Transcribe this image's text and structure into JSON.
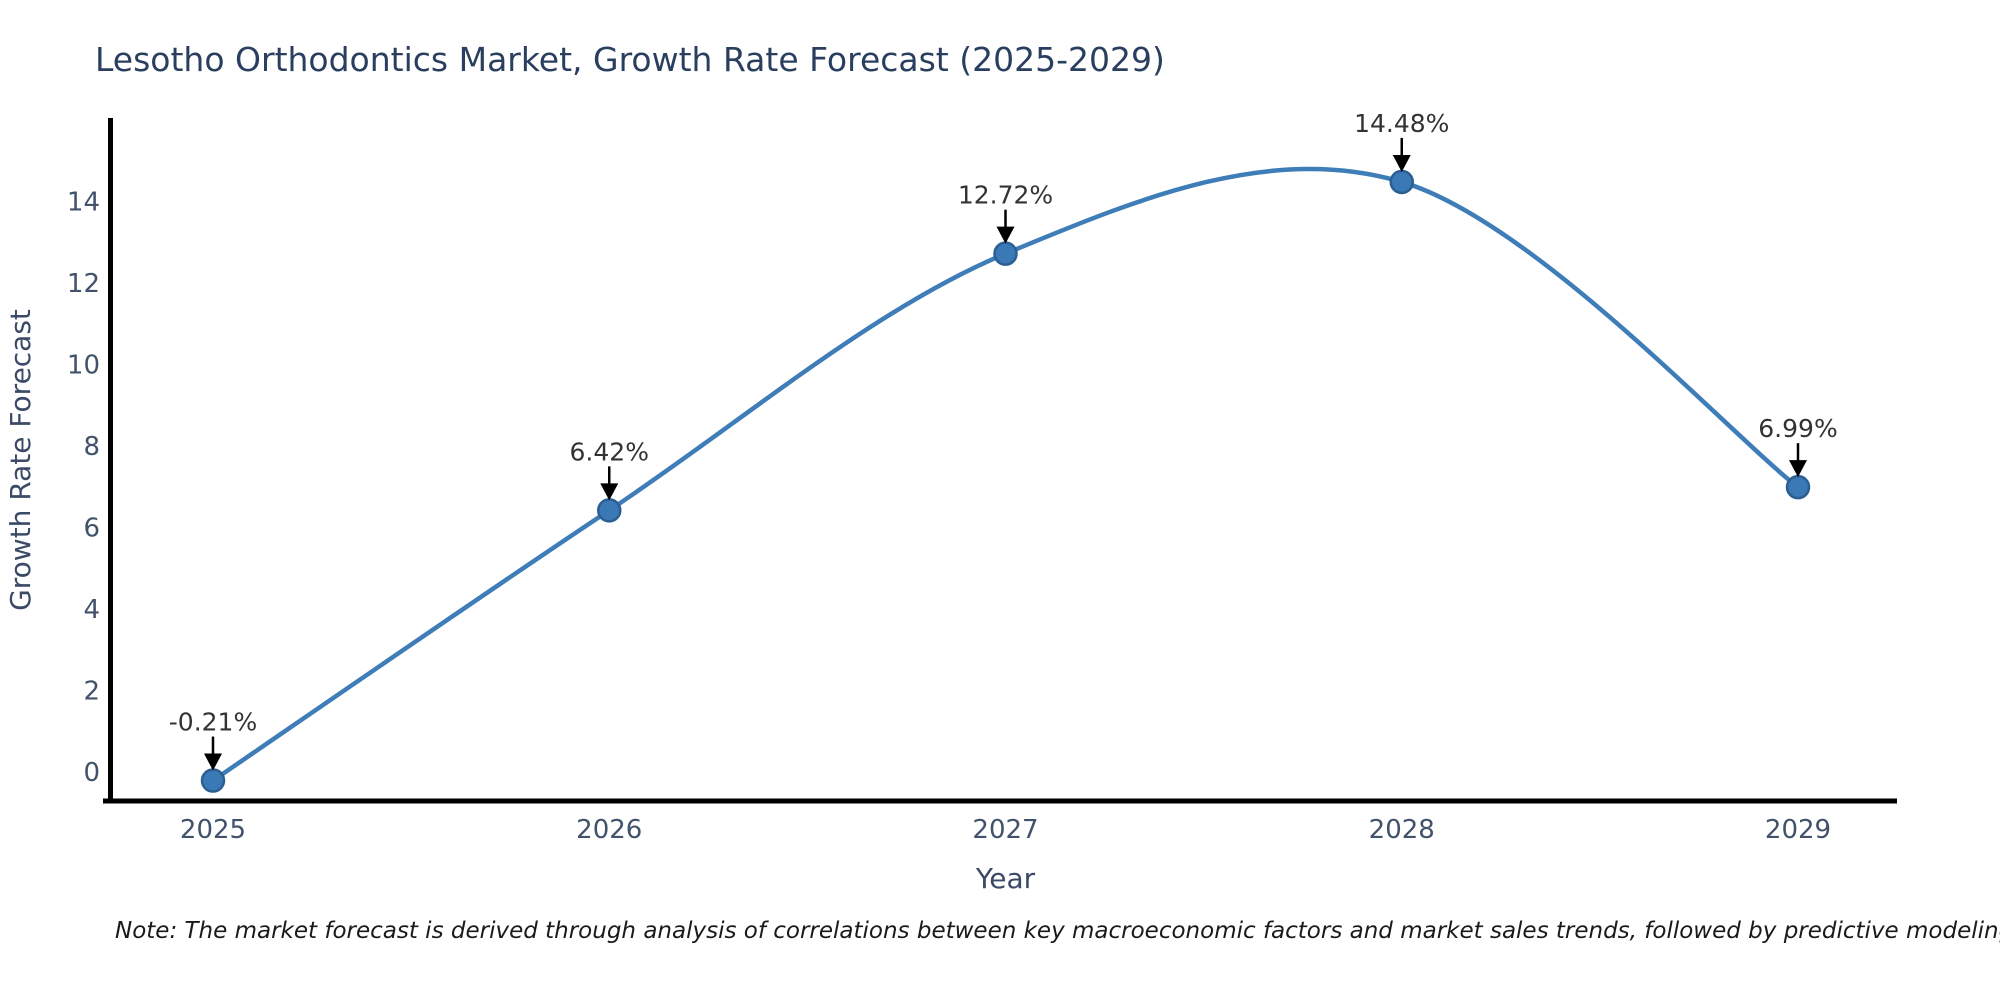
{
  "title": "Lesotho Orthodontics Market, Growth Rate Forecast (2025-2029)",
  "note": "Note: The market forecast is derived through analysis of correlations between key macroeconomic factors and market sales trends, followed by predictive modeling to project future sales",
  "chart_data": {
    "type": "line",
    "title": "Lesotho Orthodontics Market, Growth Rate Forecast (2025-2029)",
    "xlabel": "Year",
    "ylabel": "Growth Rate Forecast",
    "categories": [
      "2025",
      "2026",
      "2027",
      "2028",
      "2029"
    ],
    "values": [
      -0.21,
      6.42,
      12.72,
      14.48,
      6.99
    ],
    "point_labels": [
      "-0.21%",
      "6.42%",
      "12.72%",
      "14.48%",
      "6.99%"
    ],
    "yticks": [
      0,
      2,
      4,
      6,
      8,
      10,
      12,
      14
    ],
    "ylim": [
      -0.75,
      15.6
    ],
    "grid": false,
    "legend": "none",
    "line_shape": "spline",
    "annotation_style": "arrow-down-to-point",
    "colors": {
      "line": "#3f7db8",
      "marker_fill": "#3a79b5",
      "marker_edge": "#2b5f92",
      "annotation_text": "#333333",
      "arrow": "#000000",
      "axis_spine": "#000000",
      "title": "#2a3f5f",
      "tick_label": "#42526b",
      "axis_label": "#3b4a66"
    }
  }
}
